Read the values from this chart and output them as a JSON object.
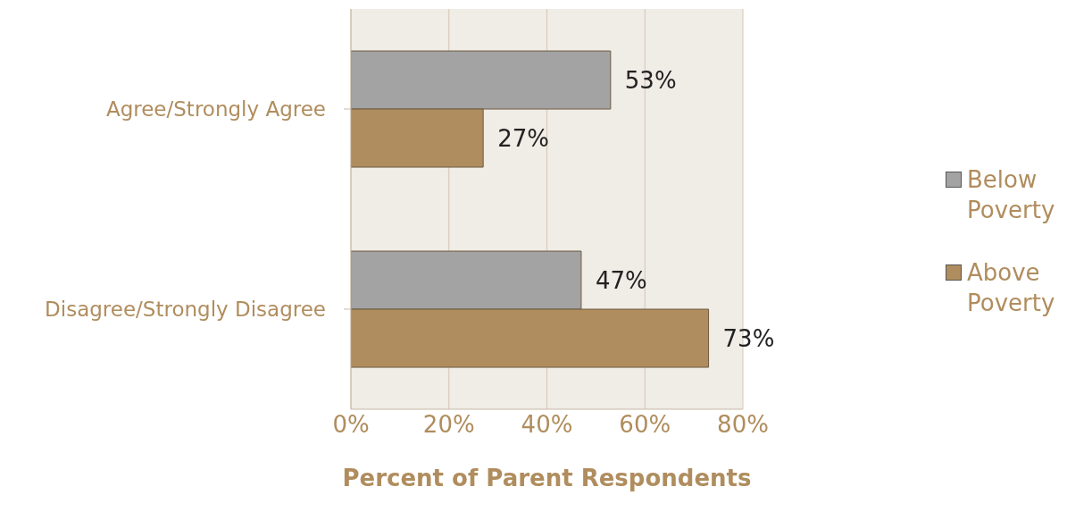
{
  "chart_data": {
    "type": "bar",
    "orientation": "horizontal",
    "xlabel": "Percent of Parent Respondents",
    "categories": [
      "Agree/Strongly Agree",
      "Disagree/Strongly Disagree"
    ],
    "series": [
      {
        "name": "Below Poverty",
        "color": "#a3a3a3",
        "values": [
          53,
          47
        ],
        "value_labels": [
          "53%",
          "47%"
        ]
      },
      {
        "name": "Above Poverty",
        "color": "#b08d5e",
        "values": [
          27,
          73
        ],
        "value_labels": [
          "27%",
          "73%"
        ]
      }
    ],
    "xlim": [
      0,
      80
    ],
    "xticks": [
      {
        "value": 0,
        "label": "0%"
      },
      {
        "value": 20,
        "label": "20%"
      },
      {
        "value": 40,
        "label": "40%"
      },
      {
        "value": 60,
        "label": "60%"
      },
      {
        "value": 80,
        "label": "80%"
      }
    ],
    "grid": "x",
    "legend": "right"
  }
}
